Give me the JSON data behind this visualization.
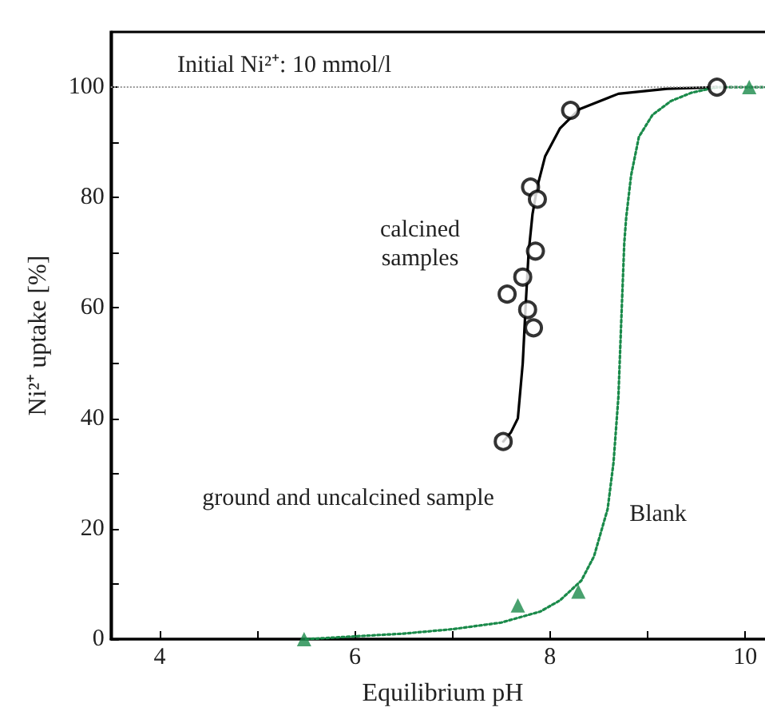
{
  "chart_data": {
    "type": "scatter",
    "xlabel": "Equilibrium pH",
    "ylabel": "Ni²⁺ uptake [%]",
    "xlim": [
      3.5,
      10.3
    ],
    "ylim": [
      0,
      110
    ],
    "xticks": [
      4,
      {
        "value": 5,
        "label": null
      },
      6,
      {
        "value": 7,
        "label": null
      },
      8,
      {
        "value": 9,
        "label": null
      },
      10
    ],
    "yticks": [
      0,
      {
        "value": 10,
        "label": null
      },
      20,
      {
        "value": 30,
        "label": null
      },
      40,
      {
        "value": 50,
        "label": null
      },
      60,
      {
        "value": 70,
        "label": null
      },
      80,
      {
        "value": 90,
        "label": null
      },
      100
    ],
    "grid": false,
    "series": [
      {
        "marker": "circle",
        "color": "#000000",
        "x": [
          7.52,
          7.56,
          7.72,
          7.77,
          7.83,
          7.85,
          7.8,
          7.87,
          8.21,
          9.71
        ],
        "values": [
          35.8,
          62.5,
          65.6,
          59.7,
          56.4,
          70.3,
          81.9,
          79.7,
          95.8,
          100
        ]
      },
      {
        "type": "line",
        "line_style": "solid",
        "marker": "none",
        "color": "#000000",
        "x": [
          7.52,
          7.6,
          7.67,
          7.72,
          7.75,
          7.78,
          7.82,
          7.87,
          7.95,
          8.1,
          8.3,
          8.7,
          9.2,
          9.71
        ],
        "values": [
          35.8,
          37.5,
          40,
          50,
          60.5,
          70,
          77,
          82,
          87.5,
          92.5,
          96,
          98.8,
          99.7,
          100
        ]
      },
      {
        "marker": "triangle",
        "color": "#1a8a4a",
        "x": [
          5.48,
          7.67,
          8.29,
          10.04
        ],
        "values": [
          0,
          6.1,
          8.6,
          100
        ]
      },
      {
        "type": "line",
        "line_style": "dotted",
        "marker": "none",
        "color": "#1a8a4a",
        "x": [
          5.5,
          6,
          6.5,
          7,
          7.5,
          7.9,
          8.1,
          8.32,
          8.45,
          8.59,
          8.65,
          8.7,
          8.73,
          8.76,
          8.78,
          8.83,
          8.91,
          9.05,
          9.24,
          9.45,
          9.71,
          10,
          10.3
        ],
        "values": [
          0,
          0.5,
          1,
          1.8,
          3,
          5,
          7,
          10.6,
          15,
          23.6,
          32,
          43.9,
          58,
          71.7,
          76.4,
          84,
          91,
          95,
          97.5,
          99,
          100,
          100,
          100
        ]
      }
    ],
    "ref_lines": [
      {
        "axis": "y",
        "value": 100,
        "color": "#999999",
        "line_style": "dotted"
      }
    ],
    "annotations": [
      "Initial Ni²⁺: 10 mmol/l",
      "calcined\nsamples",
      "ground and uncalcined sample",
      "Blank"
    ]
  }
}
